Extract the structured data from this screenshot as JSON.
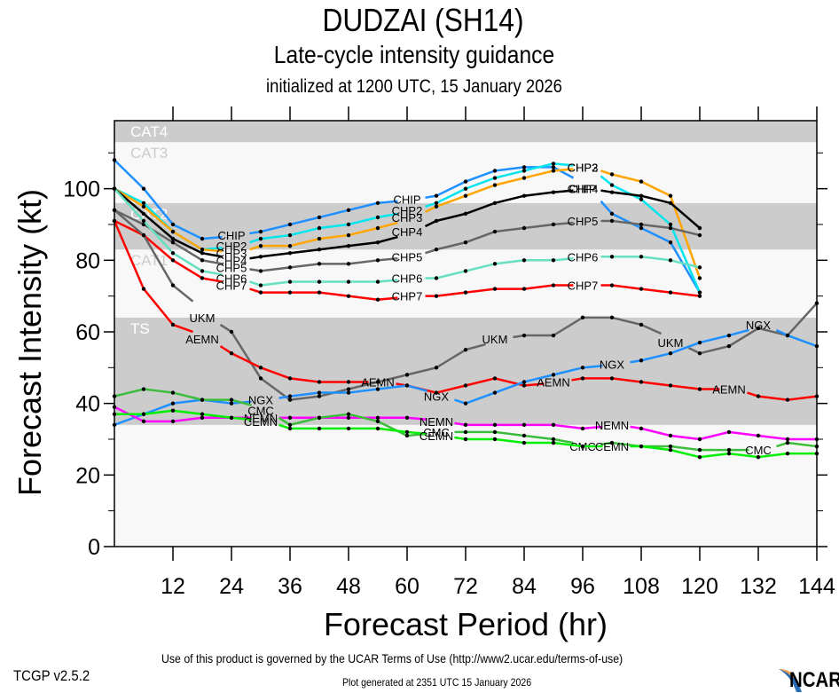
{
  "header": {
    "title": "DUDZAI (SH14)",
    "subtitle": "Late-cycle intensity guidance",
    "initialized": "initialized at 1200 UTC, 15 January 2026"
  },
  "footer": {
    "terms": "Use of this product is governed by the UCAR Terms of Use (http://www2.ucar.edu/terms-of-use)",
    "version": "TCGP v2.5.2",
    "generated": "Plot generated at 2351 UTC   15 January 2026",
    "logo_text": "NCAR"
  },
  "chart_data": {
    "type": "line",
    "title": "DUDZAI (SH14)",
    "subtitle": "Late-cycle intensity guidance",
    "xlabel": "Forecast Period (hr)",
    "ylabel": "Forecast Intensity (kt)",
    "xlim": [
      0,
      144
    ],
    "ylim": [
      0,
      119
    ],
    "xticks": [
      12,
      24,
      36,
      48,
      60,
      72,
      84,
      96,
      108,
      120,
      132,
      144
    ],
    "yticks": [
      0,
      20,
      40,
      60,
      80,
      100
    ],
    "yminor": [
      10,
      30,
      50,
      70,
      90,
      110
    ],
    "grid": false,
    "legend": "inline labels",
    "bands": [
      {
        "label": "TS",
        "from": 34,
        "to": 64,
        "color": "#cccccc"
      },
      {
        "label": "CAT1",
        "from": 64,
        "to": 83,
        "color": "#f8f8f8"
      },
      {
        "label": "CAT2",
        "from": 83,
        "to": 96,
        "color": "#cccccc"
      },
      {
        "label": "CAT3",
        "from": 96,
        "to": 113,
        "color": "#f8f8f8"
      },
      {
        "label": "CAT4",
        "from": 113,
        "to": 119,
        "color": "#cccccc"
      }
    ],
    "below_band_color": "#f8f8f8",
    "x": [
      0,
      6,
      12,
      18,
      24,
      30,
      36,
      42,
      48,
      54,
      60,
      66,
      72,
      78,
      84,
      90,
      96,
      102,
      108,
      114,
      120,
      126,
      132,
      138,
      144
    ],
    "series": [
      {
        "name": "CHIP",
        "color": "#1e90ff",
        "label_at": [
          24,
          60,
          96
        ],
        "values": [
          108,
          100,
          90,
          86,
          87,
          88,
          90,
          92,
          94,
          96,
          97,
          98,
          102,
          105,
          106,
          106,
          100,
          93,
          89,
          85,
          71
        ]
      },
      {
        "name": "CHP2",
        "color": "#00e5ee",
        "label_at": [
          24,
          60,
          96
        ],
        "values": [
          100,
          96,
          88,
          83,
          84,
          86,
          87,
          89,
          90,
          92,
          94,
          96,
          100,
          103,
          105,
          107,
          106,
          101,
          97,
          90,
          71
        ]
      },
      {
        "name": "CHP3",
        "color": "#ffa500",
        "label_at": [
          24,
          60,
          96
        ],
        "values": [
          100,
          95,
          88,
          83,
          82,
          84,
          84,
          86,
          87,
          89,
          92,
          95,
          98,
          101,
          103,
          105,
          106,
          104,
          102,
          98,
          75
        ]
      },
      {
        "name": "CHP4",
        "color": "#000000",
        "label_at": [
          24,
          60,
          96
        ],
        "values": [
          100,
          93,
          86,
          82,
          80,
          81,
          82,
          83,
          84,
          85,
          88,
          91,
          93,
          96,
          98,
          99,
          100,
          99,
          98,
          96,
          89
        ]
      },
      {
        "name": "CHP5",
        "color": "#666666",
        "label_at": [
          24,
          60,
          96
        ],
        "values": [
          94,
          90,
          85,
          80,
          78,
          77,
          78,
          79,
          79,
          80,
          81,
          83,
          85,
          88,
          89,
          90,
          91,
          91,
          90,
          89,
          87
        ]
      },
      {
        "name": "CHP6",
        "color": "#66e0c0",
        "label_at": [
          24,
          60,
          96
        ],
        "values": [
          100,
          91,
          82,
          77,
          75,
          73,
          74,
          74,
          74,
          74,
          75,
          75,
          77,
          79,
          80,
          80,
          81,
          81,
          81,
          80,
          78
        ]
      },
      {
        "name": "CHP7",
        "color": "#ff0000",
        "label_at": [
          24,
          60,
          96
        ],
        "values": [
          91,
          87,
          80,
          75,
          73,
          71,
          71,
          71,
          70,
          69,
          70,
          70,
          71,
          72,
          72,
          73,
          73,
          73,
          72,
          71,
          70
        ]
      },
      {
        "name": "UKM",
        "color": "#666666",
        "label_at": [
          18,
          78,
          114
        ],
        "values": [
          94,
          87,
          73,
          64,
          60,
          47,
          41,
          42,
          44,
          46,
          48,
          50,
          55,
          58,
          59,
          59,
          64,
          64,
          62,
          57,
          54,
          56,
          61,
          59,
          68
        ]
      },
      {
        "name": "AEMN",
        "color": "#ff0000",
        "label_at": [
          18,
          54,
          90,
          126
        ],
        "values": [
          91,
          72,
          62,
          58,
          54,
          50,
          47,
          46,
          46,
          46,
          45,
          43,
          45,
          47,
          45,
          46,
          47,
          47,
          46,
          45,
          44,
          44,
          42,
          41,
          42
        ]
      },
      {
        "name": "NGX",
        "color": "#1e90ff",
        "label_at": [
          30,
          66,
          102,
          132
        ],
        "values": [
          34,
          37,
          40,
          41,
          40,
          41,
          42,
          43,
          43,
          44,
          45,
          42,
          40,
          43,
          46,
          48,
          50,
          51,
          52,
          54,
          57,
          59,
          62,
          59,
          56
        ]
      },
      {
        "name": "NEMN",
        "color": "#ff00ff",
        "label_at": [
          30,
          66,
          102
        ],
        "values": [
          39,
          35,
          35,
          36,
          36,
          36,
          36,
          36,
          36,
          36,
          36,
          35,
          34,
          34,
          34,
          34,
          33,
          34,
          33,
          31,
          30,
          32,
          31,
          30,
          30
        ]
      },
      {
        "name": "CMC",
        "color": "#3cbc3c",
        "label_at": [
          30,
          66,
          96,
          132
        ],
        "values": [
          42,
          44,
          43,
          41,
          41,
          38,
          34,
          36,
          37,
          35,
          31,
          32,
          32,
          32,
          31,
          30,
          28,
          29,
          28,
          28,
          27,
          27,
          27,
          29,
          28
        ]
      },
      {
        "name": "CEMN",
        "color": "#00ee00",
        "label_at": [
          30,
          66,
          102
        ],
        "values": [
          37,
          37,
          38,
          37,
          36,
          35,
          33,
          33,
          33,
          33,
          32,
          31,
          30,
          30,
          29,
          29,
          28,
          28,
          28,
          27,
          25,
          26,
          25,
          26,
          26
        ]
      }
    ]
  }
}
